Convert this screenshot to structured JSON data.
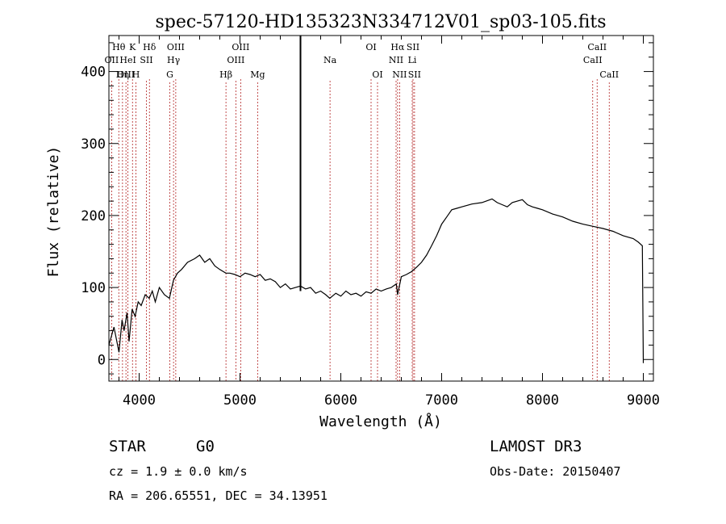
{
  "chart_data": {
    "type": "line",
    "title": "spec-57120-HD135323N334712V01_sp03-105.fits",
    "xlabel": "Wavelength (Å)",
    "ylabel": "Flux (relative)",
    "xlim": [
      3700,
      9100
    ],
    "ylim": [
      -30,
      450
    ],
    "x_ticks": [
      4000,
      5000,
      6000,
      7000,
      8000,
      9000
    ],
    "y_ticks": [
      0,
      100,
      200,
      300,
      400
    ],
    "series": [
      {
        "name": "flux",
        "x": [
          3700,
          3750,
          3800,
          3830,
          3850,
          3880,
          3900,
          3930,
          3960,
          3990,
          4020,
          4060,
          4100,
          4130,
          4160,
          4200,
          4250,
          4300,
          4340,
          4380,
          4420,
          4480,
          4550,
          4600,
          4650,
          4700,
          4750,
          4800,
          4860,
          4900,
          4950,
          5000,
          5050,
          5100,
          5150,
          5200,
          5250,
          5300,
          5350,
          5400,
          5450,
          5500,
          5550,
          5600,
          5650,
          5700,
          5750,
          5800,
          5850,
          5890,
          5950,
          6000,
          6050,
          6100,
          6150,
          6200,
          6250,
          6300,
          6350,
          6400,
          6450,
          6500,
          6550,
          6563,
          6600,
          6650,
          6700,
          6750,
          6800,
          6850,
          6900,
          6950,
          7000,
          7050,
          7100,
          7150,
          7200,
          7300,
          7400,
          7500,
          7550,
          7600,
          7650,
          7700,
          7750,
          7800,
          7850,
          7900,
          7950,
          8000,
          8100,
          8200,
          8300,
          8400,
          8500,
          8600,
          8700,
          8800,
          8900,
          8950,
          8990,
          9000
        ],
        "y": [
          20,
          45,
          10,
          55,
          40,
          65,
          25,
          70,
          60,
          80,
          75,
          90,
          85,
          95,
          80,
          100,
          90,
          85,
          110,
          120,
          125,
          135,
          140,
          145,
          135,
          140,
          130,
          125,
          120,
          120,
          118,
          115,
          120,
          118,
          115,
          118,
          110,
          112,
          108,
          100,
          105,
          98,
          100,
          102,
          98,
          100,
          92,
          95,
          90,
          85,
          92,
          88,
          95,
          90,
          92,
          88,
          94,
          92,
          98,
          95,
          98,
          100,
          105,
          90,
          115,
          118,
          122,
          128,
          135,
          145,
          158,
          172,
          188,
          198,
          208,
          210,
          212,
          216,
          218,
          223,
          218,
          215,
          212,
          218,
          220,
          222,
          215,
          212,
          210,
          208,
          202,
          198,
          192,
          188,
          185,
          182,
          178,
          172,
          168,
          163,
          158,
          -5
        ]
      }
    ],
    "vertical_marker": {
      "x": 5600,
      "label": ""
    },
    "line_markers": [
      {
        "label": "Hθ",
        "x": 3798,
        "row": 1
      },
      {
        "label": "OII",
        "x": 3727,
        "row": 2
      },
      {
        "label": "OIII",
        "x": 3869,
        "row": 3
      },
      {
        "label": "HeI",
        "x": 3889,
        "row": 2
      },
      {
        "label": "Hη",
        "x": 3835,
        "row": 3
      },
      {
        "label": "K",
        "x": 3934,
        "row": 1
      },
      {
        "label": "SII",
        "x": 4072,
        "row": 2
      },
      {
        "label": "H",
        "x": 3968,
        "row": 3
      },
      {
        "label": "Hδ",
        "x": 4102,
        "row": 1
      },
      {
        "label": "OIII",
        "x": 4363,
        "row": 1
      },
      {
        "label": "Hγ",
        "x": 4341,
        "row": 2
      },
      {
        "label": "G",
        "x": 4304,
        "row": 3
      },
      {
        "label": "Hβ",
        "x": 4861,
        "row": 3
      },
      {
        "label": "OIII",
        "x": 5007,
        "row": 1
      },
      {
        "label": "OIII",
        "x": 4959,
        "row": 2
      },
      {
        "label": "Mg",
        "x": 5175,
        "row": 3
      },
      {
        "label": "Na",
        "x": 5893,
        "row": 2
      },
      {
        "label": "OI",
        "x": 6300,
        "row": 1
      },
      {
        "label": "OI",
        "x": 6364,
        "row": 3
      },
      {
        "label": "Hα",
        "x": 6563,
        "row": 1
      },
      {
        "label": "NII",
        "x": 6548,
        "row": 2
      },
      {
        "label": "NII",
        "x": 6583,
        "row": 3
      },
      {
        "label": "SII",
        "x": 6716,
        "row": 1
      },
      {
        "label": "Li",
        "x": 6708,
        "row": 2
      },
      {
        "label": "SII",
        "x": 6731,
        "row": 3
      },
      {
        "label": "CaII",
        "x": 8542,
        "row": 1
      },
      {
        "label": "CaII",
        "x": 8498,
        "row": 2
      },
      {
        "label": "CaII",
        "x": 8662,
        "row": 3
      }
    ]
  },
  "footer": {
    "class_label": "STAR",
    "subclass_label": "G0",
    "survey": "LAMOST DR3",
    "cz": "cz = 1.9 ± 0.0 km/s",
    "obs_date": "Obs-Date: 20150407",
    "coords": "RA = 206.65551, DEC =  34.13951"
  },
  "colors": {
    "marker_line": "#b22222",
    "spectrum": "#000000"
  }
}
